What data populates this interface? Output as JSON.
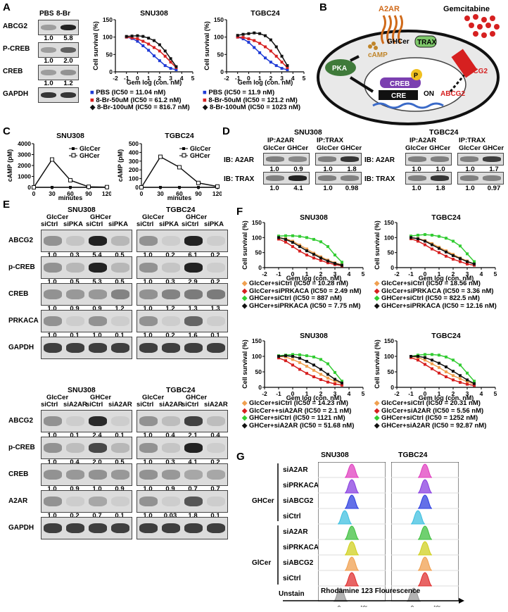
{
  "panels": {
    "A": "A",
    "B": "B",
    "C": "C",
    "D": "D",
    "E": "E",
    "F": "F",
    "G": "G"
  },
  "panelA": {
    "lanes": [
      "PBS",
      "8-Br"
    ],
    "blots": [
      {
        "name": "ABCG2",
        "values": [
          "1.0",
          "5.8"
        ]
      },
      {
        "name": "P-CREB",
        "values": [
          "1.0",
          "2.0"
        ]
      },
      {
        "name": "CREB",
        "values": [
          "1.0",
          "1.2"
        ]
      },
      {
        "name": "GAPDH",
        "values": []
      }
    ],
    "legend_snu": [
      "PBS (IC50 = 11.04 nM)",
      "8-Br-50uM (IC50 = 61.2 nM)",
      "8-Br-100uM (IC50 = 816.7 nM)"
    ],
    "legend_tgbc": [
      "PBS (IC50 = 11.9 nM)",
      "8-Br-50uM (IC50 = 121.2 nM)",
      "8-Br-100uM (IC50 = 1023 nM)"
    ]
  },
  "panelB": {
    "a2ar": "A2AR",
    "ghcer": "GHCer",
    "trax": "TRAX",
    "camp": "cAMP",
    "pka": "PKA",
    "creb": "CREB",
    "p": "P",
    "cre": "CRE",
    "on": "ON",
    "abcg2_gene": "ABCG2",
    "gemcitabine": "Gemcitabine",
    "abcg2": "ABCG2"
  },
  "panelD": {
    "snu_title": "SNU308",
    "tgbc_title": "TGBC24",
    "ip_a2ar": "IP:A2AR",
    "ip_trax": "IP:TRAX",
    "ib_a2ar": "IB: A2AR",
    "ib_trax": "IB: TRAX",
    "cols": [
      "GlcCer",
      "GHCer",
      "GlcCer",
      "GHCer"
    ],
    "snu_vals_a2ar": [
      "1.0",
      "0.9",
      "1.0",
      "1.8"
    ],
    "snu_vals_trax": [
      "1.0",
      "4.1",
      "1.0",
      "0.98"
    ],
    "tgbc_vals_a2ar": [
      "1.0",
      "1.0",
      "1.0",
      "1.7"
    ],
    "tgbc_vals_trax": [
      "1.0",
      "1.8",
      "1.0",
      "0.97"
    ]
  },
  "panelE1": {
    "snu_title": "SNU308",
    "tgbc_title": "TGBC24",
    "groups": [
      "GlcCer",
      "GHCer",
      "GlcCer",
      "GHCer"
    ],
    "lanes": [
      "siCtrl",
      "siPKA",
      "siCtrl",
      "siPKA",
      "siCtrl",
      "siPKA",
      "siCtrl",
      "siPKA"
    ],
    "blots": [
      {
        "name": "ABCG2",
        "snu": [
          "1.0",
          "0.3",
          "5.4",
          "0.5"
        ],
        "tgbc": [
          "1.0",
          "0.2",
          "6.1",
          "0.2"
        ]
      },
      {
        "name": "p-CREB",
        "snu": [
          "1.0",
          "0.5",
          "5.3",
          "0.5"
        ],
        "tgbc": [
          "1.0",
          "0.3",
          "2.9",
          "0.2"
        ]
      },
      {
        "name": "CREB",
        "snu": [
          "1.0",
          "0.9",
          "0.9",
          "1.2"
        ],
        "tgbc": [
          "1.0",
          "1.2",
          "1.3",
          "1.3"
        ]
      },
      {
        "name": "PRKACA",
        "snu": [
          "1.0",
          "0.1",
          "1.0",
          "0.1"
        ],
        "tgbc": [
          "1.0",
          "0.2",
          "1.6",
          "0.1"
        ]
      },
      {
        "name": "GAPDH",
        "snu": [],
        "tgbc": []
      }
    ]
  },
  "panelE2": {
    "snu_title": "SNU308",
    "tgbc_title": "TGBC24",
    "groups": [
      "GlcCer",
      "GHCer",
      "GlcCer",
      "GHCer"
    ],
    "lanes": [
      "siCtrl",
      "siA2AR",
      "siCtrl",
      "siA2AR",
      "siCtrl",
      "siA2AR",
      "siCtrl",
      "siA2AR"
    ],
    "blots": [
      {
        "name": "ABCG2",
        "snu": [
          "1.0",
          "0.1",
          "2.4",
          "0.1"
        ],
        "tgbc": [
          "1.0",
          "0.4",
          "2.1",
          "0.4"
        ]
      },
      {
        "name": "p-CREB",
        "snu": [
          "1.0",
          "0.4",
          "2.0",
          "0.5"
        ],
        "tgbc": [
          "1.0",
          "0.3",
          "4.1",
          "0.2"
        ]
      },
      {
        "name": "CREB",
        "snu": [
          "1.0",
          "0.9",
          "1.0",
          "0.9"
        ],
        "tgbc": [
          "1.0",
          "0.9",
          "0.7",
          "0.7"
        ]
      },
      {
        "name": "A2AR",
        "snu": [
          "1.0",
          "0.2",
          "0.7",
          "0.1"
        ],
        "tgbc": [
          "1.0",
          "0.03",
          "1.8",
          "0.1"
        ]
      },
      {
        "name": "GAPDH",
        "snu": [],
        "tgbc": []
      }
    ]
  },
  "panelF": {
    "legend1_snu": [
      "GlcCer+siCtrl (IC50 = 10.28 nM)",
      "GlcCer+siPRKACA (IC50 = 2.49 nM)",
      "GHCer+siCtrl (IC50 = 887 nM)",
      "GHCer+siPRKACA (IC50 = 7.75 nM)"
    ],
    "legend1_tgbc": [
      "GlcCer+siCtrl (IC50 = 18.56 nM)",
      "GlcCer+siPRKACA (IC50 = 3.36 nM)",
      "GHCer+siCtrl (IC50 = 822.5 nM)",
      "GHCer+siPRKACA (IC50 = 12.16 nM)"
    ],
    "legend2_snu": [
      "GlcCer+siCtrl (IC50 = 14.23 nM)",
      "GlcCer++siA2AR (IC50 = 2.1 nM)",
      "GHCer+siCtrl (IC50 = 1121 nM)",
      "GHCer+siA2AR (IC50 = 51.68 nM)"
    ],
    "legend2_tgbc": [
      "GlcCer+siCtrl (IC50 = 20.31 nM)",
      "GlcCer+siA2AR (IC50 = 5.56 nM)",
      "GHCer+siCtrl (IC50 = 1252 nM)",
      "GHCer+siA2AR (IC50 = 92.87 nM)"
    ]
  },
  "panelG": {
    "snu_title": "SNU308",
    "tgbc_title": "TGBC24",
    "ghcer": "GHCer",
    "glccer": "GlCer",
    "rows": [
      "siA2AR",
      "siPRKACA",
      "siABCG2",
      "siCtrl",
      "siA2AR",
      "siPRKACA",
      "siABCG2",
      "siCtrl",
      "Unstain"
    ],
    "xtick0": "0",
    "xtick5": "10⁵",
    "xlabel": "Rhodamine 123 Flourescence"
  },
  "chart_data": [
    {
      "type": "line",
      "title": "SNU308",
      "xlabel": "Gem log (con. nM)",
      "ylabel": "Cell survival (%)",
      "xlim": [
        -2,
        5
      ],
      "ylim": [
        0,
        150
      ],
      "x": [
        -1,
        -0.5,
        0,
        0.5,
        1,
        1.5,
        2,
        2.5,
        3,
        3.5
      ],
      "xticks": [
        "-2",
        "-1",
        "0",
        "1",
        "2",
        "3",
        "4",
        "5"
      ],
      "yticks": [
        "0",
        "50",
        "100",
        "150"
      ],
      "series": [
        {
          "name": "PBS",
          "color": "#1f3bd6",
          "values": [
            100,
            96,
            88,
            75,
            62,
            46,
            32,
            18,
            10,
            6
          ]
        },
        {
          "name": "8-Br-50uM",
          "color": "#d62020",
          "values": [
            100,
            98,
            95,
            88,
            80,
            70,
            60,
            45,
            28,
            12
          ]
        },
        {
          "name": "8-Br-100uM",
          "color": "#111111",
          "values": [
            102,
            103,
            104,
            102,
            97,
            90,
            78,
            60,
            38,
            15
          ]
        }
      ]
    },
    {
      "type": "line",
      "title": "TGBC24",
      "xlabel": "Gem log (con. nM)",
      "ylabel": "Cell survival (%)",
      "xlim": [
        -2,
        5
      ],
      "ylim": [
        0,
        150
      ],
      "x": [
        -1,
        -0.5,
        0,
        0.5,
        1,
        1.5,
        2,
        2.5,
        3,
        3.5
      ],
      "xticks": [
        "-2",
        "-1",
        "0",
        "1",
        "2",
        "3",
        "4",
        "5"
      ],
      "yticks": [
        "0",
        "50",
        "100",
        "150"
      ],
      "series": [
        {
          "name": "PBS",
          "color": "#1f3bd6",
          "values": [
            100,
            95,
            85,
            70,
            55,
            40,
            28,
            18,
            10,
            6
          ]
        },
        {
          "name": "8-Br-50uM",
          "color": "#d62020",
          "values": [
            100,
            99,
            95,
            90,
            82,
            72,
            60,
            45,
            28,
            12
          ]
        },
        {
          "name": "8-Br-100uM",
          "color": "#111111",
          "values": [
            105,
            108,
            110,
            112,
            110,
            104,
            92,
            72,
            45,
            18
          ]
        }
      ]
    },
    {
      "type": "line",
      "title": "SNU308",
      "xlabel": "minutes",
      "ylabel": "cAMP (pM)",
      "xlim": [
        0,
        120
      ],
      "ylim": [
        0,
        4000
      ],
      "x": [
        0,
        30,
        60,
        90,
        120
      ],
      "xticks": [
        "0",
        "30",
        "60",
        "90",
        "120"
      ],
      "yticks": [
        "0",
        "1000",
        "2000",
        "3000",
        "4000"
      ],
      "series": [
        {
          "name": "GlcCer",
          "color": "#111111",
          "values": [
            0,
            0,
            0,
            0,
            0
          ]
        },
        {
          "name": "GHCer",
          "color": "#111111",
          "values": [
            0,
            2550,
            650,
            50,
            20
          ]
        }
      ]
    },
    {
      "type": "line",
      "title": "TGBC24",
      "xlabel": "minutes",
      "ylabel": "cAMP (pM)",
      "xlim": [
        0,
        120
      ],
      "ylim": [
        0,
        500
      ],
      "x": [
        0,
        30,
        60,
        90,
        120
      ],
      "xticks": [
        "0",
        "30",
        "60",
        "90",
        "120"
      ],
      "yticks": [
        "0",
        "100",
        "200",
        "300",
        "400",
        "500"
      ],
      "series": [
        {
          "name": "GlcCer",
          "color": "#111111",
          "values": [
            0,
            0,
            0,
            0,
            0
          ]
        },
        {
          "name": "GHCer",
          "color": "#111111",
          "values": [
            0,
            350,
            230,
            50,
            10
          ]
        }
      ]
    },
    {
      "type": "line",
      "title": "SNU308",
      "xlabel": "Gem log (con. nM)",
      "ylabel": "Cell survival (%)",
      "xlim": [
        -2,
        5
      ],
      "ylim": [
        0,
        150
      ],
      "x": [
        -1,
        -0.5,
        0,
        0.5,
        1,
        1.5,
        2,
        2.5,
        3,
        3.5
      ],
      "xticks": [
        "-2",
        "-1",
        "0",
        "1",
        "2",
        "3",
        "4",
        "5"
      ],
      "yticks": [
        "0",
        "50",
        "100",
        "150"
      ],
      "series": [
        {
          "name": "GlcCer+siCtrl",
          "color": "#f0a050",
          "values": [
            100,
            96,
            88,
            75,
            62,
            48,
            36,
            25,
            16,
            10
          ]
        },
        {
          "name": "GlcCer+siPRKACA",
          "color": "#d62020",
          "values": [
            95,
            85,
            70,
            55,
            42,
            32,
            24,
            16,
            10,
            6
          ]
        },
        {
          "name": "GHCer+siCtrl",
          "color": "#33cc33",
          "values": [
            105,
            106,
            106,
            104,
            100,
            94,
            86,
            70,
            42,
            18
          ]
        },
        {
          "name": "GHCer+siPRKACA",
          "color": "#111111",
          "values": [
            100,
            94,
            84,
            70,
            56,
            44,
            32,
            22,
            14,
            8
          ]
        }
      ]
    },
    {
      "type": "line",
      "title": "TGBC24",
      "xlabel": "Gem log (con. nM)",
      "ylabel": "Cell survival (%)",
      "xlim": [
        -2,
        5
      ],
      "ylim": [
        0,
        150
      ],
      "x": [
        -1,
        -0.5,
        0,
        0.5,
        1,
        1.5,
        2,
        2.5,
        3,
        3.5
      ],
      "xticks": [
        "-2",
        "-1",
        "0",
        "1",
        "2",
        "3",
        "4",
        "5"
      ],
      "yticks": [
        "0",
        "50",
        "100",
        "150"
      ],
      "series": [
        {
          "name": "GlcCer+siCtrl",
          "color": "#f0a050",
          "values": [
            100,
            97,
            90,
            80,
            68,
            56,
            44,
            32,
            22,
            12
          ]
        },
        {
          "name": "GlcCer+siPRKACA",
          "color": "#d62020",
          "values": [
            96,
            88,
            76,
            62,
            50,
            38,
            28,
            20,
            12,
            8
          ]
        },
        {
          "name": "GHCer+siCtrl",
          "color": "#33cc33",
          "values": [
            105,
            108,
            110,
            108,
            104,
            98,
            88,
            72,
            46,
            20
          ]
        },
        {
          "name": "GHCer+siPRKACA",
          "color": "#111111",
          "values": [
            100,
            96,
            88,
            76,
            64,
            52,
            40,
            30,
            20,
            12
          ]
        }
      ]
    },
    {
      "type": "line",
      "title": "SNU308",
      "xlabel": "Gem log (con. nM)",
      "ylabel": "Cell survival (%)",
      "xlim": [
        -2,
        5
      ],
      "ylim": [
        0,
        150
      ],
      "x": [
        -1,
        -0.5,
        0,
        0.5,
        1,
        1.5,
        2,
        2.5,
        3,
        3.5
      ],
      "xticks": [
        "-2",
        "-1",
        "0",
        "1",
        "2",
        "3",
        "4",
        "5"
      ],
      "yticks": [
        "0",
        "50",
        "100",
        "150"
      ],
      "series": [
        {
          "name": "GlcCer+siCtrl",
          "color": "#f0a050",
          "values": [
            100,
            98,
            90,
            80,
            68,
            55,
            42,
            30,
            20,
            12
          ]
        },
        {
          "name": "GlcCer++siA2AR",
          "color": "#d62020",
          "values": [
            95,
            86,
            72,
            58,
            45,
            34,
            25,
            17,
            11,
            7
          ]
        },
        {
          "name": "GHCer+siCtrl",
          "color": "#33cc33",
          "values": [
            102,
            104,
            106,
            105,
            102,
            98,
            90,
            76,
            48,
            20
          ]
        },
        {
          "name": "GHCer+siA2AR",
          "color": "#111111",
          "values": [
            100,
            102,
            100,
            94,
            84,
            72,
            58,
            42,
            26,
            14
          ]
        }
      ]
    },
    {
      "type": "line",
      "title": "TGBC24",
      "xlabel": "Gem log (con. nM)",
      "ylabel": "Cell survival (%)",
      "xlim": [
        -2,
        5
      ],
      "ylim": [
        0,
        150
      ],
      "x": [
        -1,
        -0.5,
        0,
        0.5,
        1,
        1.5,
        2,
        2.5,
        3,
        3.5
      ],
      "xticks": [
        "-2",
        "-1",
        "0",
        "1",
        "2",
        "3",
        "4",
        "5"
      ],
      "yticks": [
        "0",
        "50",
        "100",
        "150"
      ],
      "series": [
        {
          "name": "GlcCer+siCtrl",
          "color": "#f0a050",
          "values": [
            100,
            96,
            88,
            76,
            64,
            50,
            38,
            28,
            18,
            10
          ]
        },
        {
          "name": "GlcCer+siA2AR",
          "color": "#d62020",
          "values": [
            96,
            88,
            74,
            60,
            46,
            34,
            24,
            16,
            10,
            6
          ]
        },
        {
          "name": "GHCer+siCtrl",
          "color": "#33cc33",
          "values": [
            100,
            104,
            106,
            106,
            104,
            98,
            88,
            72,
            46,
            20
          ]
        },
        {
          "name": "GHCer+siA2AR",
          "color": "#111111",
          "values": [
            100,
            100,
            96,
            88,
            78,
            66,
            52,
            38,
            24,
            12
          ]
        }
      ]
    }
  ]
}
